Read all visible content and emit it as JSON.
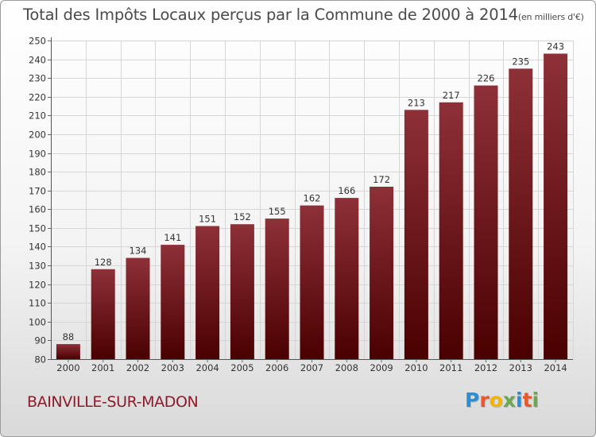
{
  "title": {
    "main": "Total des Impôts Locaux perçus par la Commune de 2000 à 2014",
    "unit": "(en milliers d'€)"
  },
  "commune_name": "BAINVILLE-SUR-MADON",
  "logo": {
    "letters": [
      "P",
      "r",
      "o",
      "x",
      "i",
      "t",
      "i"
    ],
    "colors": [
      "#2a8fd2",
      "#e8582a",
      "#f5b400",
      "#6aa84f",
      "#2a8fd2",
      "#e8582a",
      "#6aa84f"
    ]
  },
  "colors": {
    "bar_top": "#8e3038",
    "bar_bottom": "#4a0000",
    "text": "#333333",
    "grid": "#d6d6d6"
  },
  "chart_data": {
    "type": "bar",
    "title": "Total des Impôts Locaux perçus par la Commune de 2000 à 2014",
    "xlabel": "",
    "ylabel": "",
    "categories": [
      "2000",
      "2001",
      "2002",
      "2003",
      "2004",
      "2005",
      "2006",
      "2007",
      "2008",
      "2009",
      "2010",
      "2011",
      "2012",
      "2013",
      "2014"
    ],
    "values": [
      88,
      128,
      134,
      141,
      151,
      152,
      155,
      162,
      166,
      172,
      213,
      217,
      226,
      235,
      243
    ],
    "ylim": [
      80,
      250
    ],
    "yticks": [
      80,
      90,
      100,
      110,
      120,
      130,
      140,
      150,
      160,
      170,
      180,
      190,
      200,
      210,
      220,
      230,
      240,
      250
    ],
    "grid": true
  }
}
